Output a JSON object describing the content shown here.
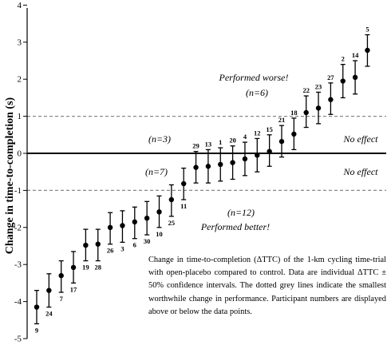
{
  "chart_data": {
    "type": "scatter",
    "title": "",
    "xlabel": "",
    "ylabel": "Change in time-to-completion (s)",
    "ylim": [
      -5,
      4
    ],
    "yticks": [
      -5,
      -4,
      -3,
      -2,
      -1,
      0,
      1,
      2,
      3,
      4
    ],
    "reference_lines": [
      {
        "y": 1,
        "style": "dashed",
        "color": "#888888"
      },
      {
        "y": -1,
        "style": "dashed",
        "color": "#888888"
      },
      {
        "y": 0,
        "style": "solid",
        "color": "#000000"
      }
    ],
    "points": [
      {
        "id": "9",
        "y": -4.15,
        "lo": -4.6,
        "hi": -3.7
      },
      {
        "id": "24",
        "y": -3.7,
        "lo": -4.15,
        "hi": -3.25
      },
      {
        "id": "7",
        "y": -3.3,
        "lo": -3.75,
        "hi": -2.9
      },
      {
        "id": "17",
        "y": -3.08,
        "lo": -3.5,
        "hi": -2.65
      },
      {
        "id": "19",
        "y": -2.48,
        "lo": -2.9,
        "hi": -2.05
      },
      {
        "id": "28",
        "y": -2.45,
        "lo": -2.9,
        "hi": -2.05
      },
      {
        "id": "26",
        "y": -2.0,
        "lo": -2.45,
        "hi": -1.6
      },
      {
        "id": "3",
        "y": -1.95,
        "lo": -2.4,
        "hi": -1.55
      },
      {
        "id": "6",
        "y": -1.85,
        "lo": -2.3,
        "hi": -1.45
      },
      {
        "id": "30",
        "y": -1.75,
        "lo": -2.2,
        "hi": -1.3
      },
      {
        "id": "10",
        "y": -1.58,
        "lo": -2.0,
        "hi": -1.15
      },
      {
        "id": "25",
        "y": -1.25,
        "lo": -1.7,
        "hi": -0.85
      },
      {
        "id": "11",
        "y": -0.82,
        "lo": -1.25,
        "hi": -0.4
      },
      {
        "id": "29",
        "y": -0.38,
        "lo": -0.8,
        "hi": 0.05
      },
      {
        "id": "13",
        "y": -0.35,
        "lo": -0.8,
        "hi": 0.1
      },
      {
        "id": "1",
        "y": -0.3,
        "lo": -0.75,
        "hi": 0.15
      },
      {
        "id": "20",
        "y": -0.25,
        "lo": -0.7,
        "hi": 0.2
      },
      {
        "id": "4",
        "y": -0.15,
        "lo": -0.6,
        "hi": 0.3
      },
      {
        "id": "12",
        "y": -0.05,
        "lo": -0.5,
        "hi": 0.4
      },
      {
        "id": "15",
        "y": 0.05,
        "lo": -0.35,
        "hi": 0.5
      },
      {
        "id": "21",
        "y": 0.32,
        "lo": -0.1,
        "hi": 0.75
      },
      {
        "id": "18",
        "y": 0.52,
        "lo": 0.1,
        "hi": 0.95
      },
      {
        "id": "22",
        "y": 1.1,
        "lo": 0.7,
        "hi": 1.55
      },
      {
        "id": "23",
        "y": 1.22,
        "lo": 0.8,
        "hi": 1.65
      },
      {
        "id": "27",
        "y": 1.45,
        "lo": 1.05,
        "hi": 1.9
      },
      {
        "id": "2",
        "y": 1.95,
        "lo": 1.5,
        "hi": 2.4
      },
      {
        "id": "14",
        "y": 2.05,
        "lo": 1.6,
        "hi": 2.5
      },
      {
        "id": "5",
        "y": 2.78,
        "lo": 2.35,
        "hi": 3.2
      }
    ]
  },
  "annotations": {
    "performed_worse": "Performed worse!",
    "n6": "(n=6)",
    "n3": "(n=3)",
    "n7": "(n=7)",
    "n12": "(n=12)",
    "performed_better": "Performed better!",
    "no_effect_upper": "No effect",
    "no_effect_lower": "No effect"
  },
  "caption": "Change in time-to-completion (ΔTTC) of the 1-km cycling time-trial with open-placebo compared to control. Data are individual ΔTTC ± 50% confidence intervals. The dotted grey lines indicate the smallest worthwhile change in performance. Participant numbers are displayed above or below the data points."
}
